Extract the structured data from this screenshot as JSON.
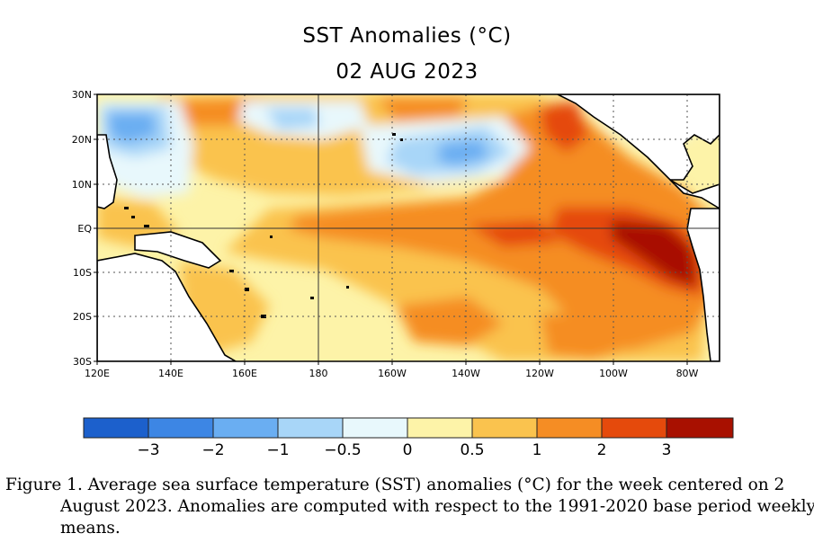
{
  "title": "SST Anomalies (°C)",
  "date": "02 AUG 2023",
  "map": {
    "lat_ticks": [
      "30N",
      "20N",
      "10N",
      "EQ",
      "10S",
      "20S",
      "30S"
    ],
    "lon_ticks": [
      "120E",
      "140E",
      "160E",
      "180",
      "160W",
      "140W",
      "120W",
      "100W",
      "80W"
    ],
    "lat_range": [
      -30,
      30
    ],
    "lon_range": [
      120,
      285
    ],
    "gridlines": "dotted"
  },
  "colorbar": {
    "colors": [
      "#1c60cc",
      "#3d86e4",
      "#6aaef2",
      "#a8d6f8",
      "#e8f8fc",
      "#fdf3a8",
      "#fac34e",
      "#f58d24",
      "#e54a0c",
      "#a81000"
    ],
    "tick_labels": [
      "−3",
      "−2",
      "−1",
      "−0.5",
      "0",
      "0.5",
      "1",
      "2",
      "3"
    ]
  },
  "caption": {
    "line1": "Figure 1. Average sea surface temperature (SST) anomalies (°C) for the week centered on 2",
    "line2": "August 2023.  Anomalies are computed with respect to the 1991-2020 base period weekly",
    "line3": "means."
  }
}
